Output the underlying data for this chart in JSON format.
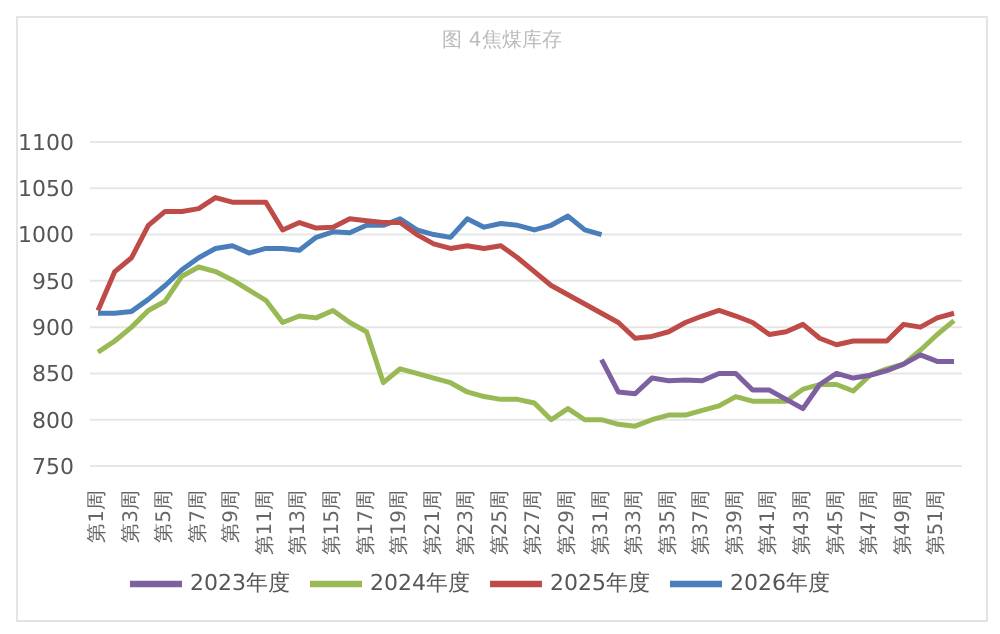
{
  "chart_data": {
    "type": "line",
    "title": "图 4焦煤库存",
    "categories": [
      "第1周",
      null,
      "第3周",
      null,
      "第5周",
      null,
      "第7周",
      null,
      "第9周",
      null,
      "第11周",
      null,
      "第13周",
      null,
      "第15周",
      null,
      "第17周",
      null,
      "第19周",
      null,
      "第21周",
      null,
      "第23周",
      null,
      "第25周",
      null,
      "第27周",
      null,
      "第29周",
      null,
      "第31周",
      null,
      "第33周",
      null,
      "第35周",
      null,
      "第37周",
      null,
      "第39周",
      null,
      "第41周",
      null,
      "第43周",
      null,
      "第45周",
      null,
      "第47周",
      null,
      "第49周",
      null,
      "第51周",
      null
    ],
    "series": [
      {
        "name": "2026年度",
        "color": "#4a7ebb",
        "values": [
          915,
          915,
          917,
          930,
          945,
          962,
          975,
          985,
          988,
          980,
          985,
          985,
          983,
          997,
          1003,
          1002,
          1010,
          1010,
          1017,
          1005,
          1000,
          997,
          1017,
          1008,
          1012,
          1010,
          1005,
          1010,
          1020,
          1005,
          1000,
          null,
          null,
          null,
          null,
          null,
          null,
          null,
          null,
          null,
          null,
          null,
          null,
          null,
          null,
          null,
          null,
          null,
          null,
          null,
          null,
          null
        ]
      },
      {
        "name": "2025年度",
        "color": "#be4b48",
        "values": [
          918,
          960,
          975,
          1010,
          1025,
          1025,
          1028,
          1040,
          1035,
          1035,
          1035,
          1005,
          1013,
          1007,
          1008,
          1017,
          1015,
          1013,
          1013,
          1000,
          990,
          985,
          988,
          985,
          988,
          975,
          960,
          945,
          935,
          925,
          915,
          905,
          888,
          890,
          895,
          905,
          912,
          918,
          912,
          905,
          892,
          895,
          903,
          888,
          881,
          885,
          885,
          885,
          903,
          900,
          910,
          915
        ]
      },
      {
        "name": "2024年度",
        "color": "#98b954",
        "values": [
          873,
          885,
          900,
          918,
          928,
          955,
          965,
          960,
          951,
          940,
          929,
          905,
          912,
          910,
          918,
          905,
          895,
          840,
          855,
          850,
          845,
          840,
          830,
          825,
          822,
          822,
          818,
          800,
          812,
          800,
          800,
          795,
          793,
          800,
          805,
          805,
          810,
          815,
          825,
          820,
          820,
          820,
          833,
          838,
          838,
          831,
          848,
          855,
          860,
          875,
          892,
          907
        ]
      },
      {
        "name": "2023年度",
        "color": "#7d60a0",
        "values": [
          null,
          null,
          null,
          null,
          null,
          null,
          null,
          null,
          null,
          null,
          null,
          null,
          null,
          null,
          null,
          null,
          null,
          null,
          null,
          null,
          null,
          null,
          null,
          null,
          null,
          null,
          null,
          null,
          null,
          null,
          865,
          830,
          828,
          845,
          842,
          843,
          842,
          850,
          850,
          832,
          832,
          822,
          812,
          838,
          850,
          845,
          848,
          853,
          860,
          870,
          863,
          863
        ]
      }
    ],
    "ylim": [
      750,
      1100
    ],
    "yticks": [
      750,
      800,
      850,
      900,
      950,
      1000,
      1050,
      1100
    ],
    "grid": "y",
    "legend": "bottom",
    "marker": "none",
    "line_style": "solid"
  }
}
